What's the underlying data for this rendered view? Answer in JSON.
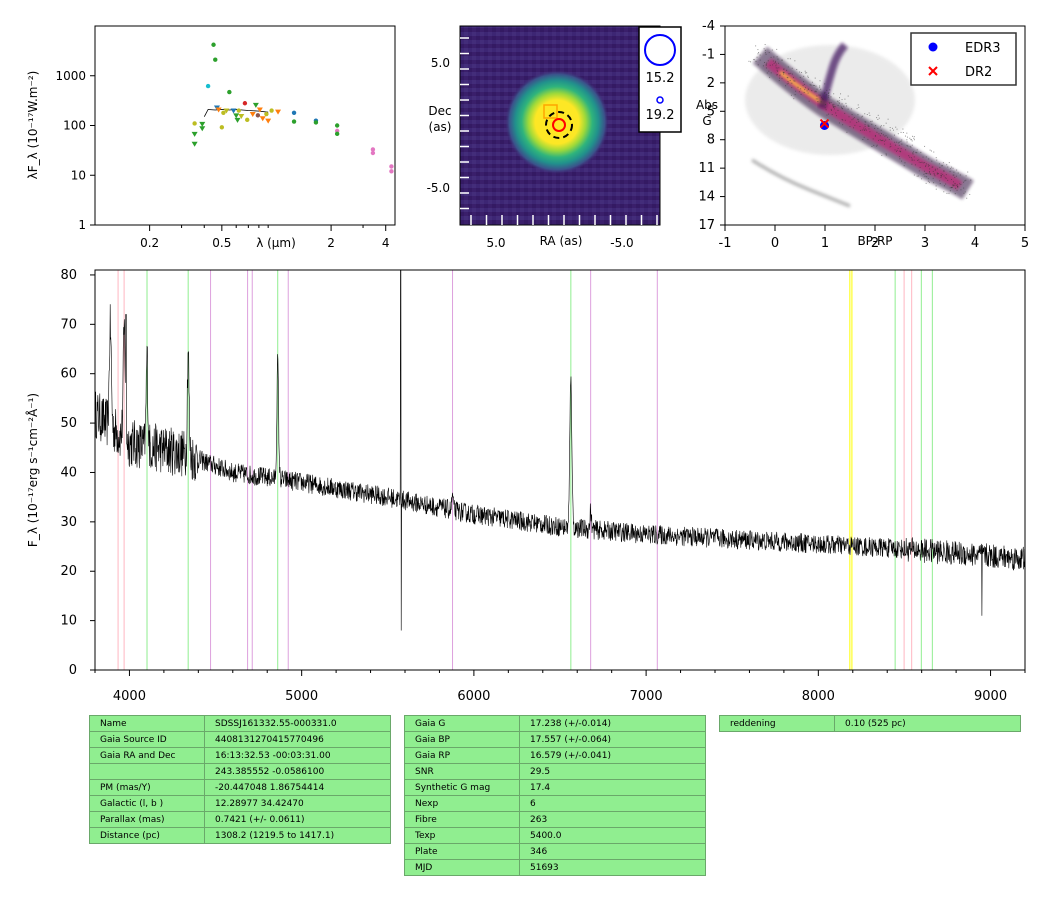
{
  "sed": {
    "ylabel": "λF_λ (10⁻¹⁷W.m⁻²)",
    "xlabel": "λ (μm)",
    "ytick_labels": [
      "1",
      "10",
      "100",
      "1000"
    ],
    "ytick_values": [
      1,
      10,
      100,
      1000
    ],
    "xtick_labels": [
      "0.2",
      "0.5",
      "2",
      "4"
    ],
    "xtick_values": [
      0.2,
      0.5,
      2,
      4
    ],
    "xlim": [
      0.1,
      4.5
    ],
    "ylim": [
      1,
      10000
    ],
    "points": [
      {
        "x": 0.354,
        "y": 110,
        "c": "#bcbd22",
        "m": "o"
      },
      {
        "x": 0.354,
        "y": 68,
        "c": "#2ca02c",
        "m": "v"
      },
      {
        "x": 0.354,
        "y": 43,
        "c": "#2ca02c",
        "m": "v"
      },
      {
        "x": 0.39,
        "y": 108,
        "c": "#2ca02c",
        "m": "v"
      },
      {
        "x": 0.39,
        "y": 88,
        "c": "#2ca02c",
        "m": "v"
      },
      {
        "x": 0.42,
        "y": 620,
        "c": "#17becf",
        "m": "o"
      },
      {
        "x": 0.45,
        "y": 4200,
        "c": "#2ca02c",
        "m": "o"
      },
      {
        "x": 0.46,
        "y": 2100,
        "c": "#2ca02c",
        "m": "o"
      },
      {
        "x": 0.47,
        "y": 230,
        "c": "#1f77b4",
        "m": "v"
      },
      {
        "x": 0.48,
        "y": 210,
        "c": "#ff7f0e",
        "m": "v"
      },
      {
        "x": 0.5,
        "y": 92,
        "c": "#bcbd22",
        "m": "o"
      },
      {
        "x": 0.51,
        "y": 180,
        "c": "#bcbd22",
        "m": "o"
      },
      {
        "x": 0.53,
        "y": 200,
        "c": "#bcbd22",
        "m": "v"
      },
      {
        "x": 0.55,
        "y": 470,
        "c": "#2ca02c",
        "m": "o"
      },
      {
        "x": 0.58,
        "y": 200,
        "c": "#1f77b4",
        "m": "v"
      },
      {
        "x": 0.6,
        "y": 160,
        "c": "#2ca02c",
        "m": "v"
      },
      {
        "x": 0.61,
        "y": 130,
        "c": "#2ca02c",
        "m": "v"
      },
      {
        "x": 0.62,
        "y": 200,
        "c": "#bcbd22",
        "m": "o"
      },
      {
        "x": 0.64,
        "y": 155,
        "c": "#bcbd22",
        "m": "v"
      },
      {
        "x": 0.67,
        "y": 280,
        "c": "#d62728",
        "m": "o"
      },
      {
        "x": 0.69,
        "y": 130,
        "c": "#bcbd22",
        "m": "o"
      },
      {
        "x": 0.74,
        "y": 170,
        "c": "#ff7f0e",
        "m": "v"
      },
      {
        "x": 0.77,
        "y": 260,
        "c": "#2ca02c",
        "m": "v"
      },
      {
        "x": 0.79,
        "y": 160,
        "c": "#8c564b",
        "m": "o"
      },
      {
        "x": 0.81,
        "y": 210,
        "c": "#ff7f0e",
        "m": "v"
      },
      {
        "x": 0.84,
        "y": 140,
        "c": "#ff7f0e",
        "m": "v"
      },
      {
        "x": 0.88,
        "y": 170,
        "c": "#bcbd22",
        "m": "o"
      },
      {
        "x": 0.9,
        "y": 125,
        "c": "#ff7f0e",
        "m": "v"
      },
      {
        "x": 0.94,
        "y": 200,
        "c": "#bcbd22",
        "m": "o"
      },
      {
        "x": 1.02,
        "y": 190,
        "c": "#ff7f0e",
        "m": "v"
      },
      {
        "x": 1.25,
        "y": 180,
        "c": "#1f77b4",
        "m": "o"
      },
      {
        "x": 1.25,
        "y": 120,
        "c": "#2ca02c",
        "m": "o"
      },
      {
        "x": 1.65,
        "y": 125,
        "c": "#1f77b4",
        "m": "o"
      },
      {
        "x": 1.65,
        "y": 115,
        "c": "#2ca02c",
        "m": "o"
      },
      {
        "x": 2.16,
        "y": 100,
        "c": "#2ca02c",
        "m": "o"
      },
      {
        "x": 2.16,
        "y": 78,
        "c": "#e377c2",
        "m": "o"
      },
      {
        "x": 2.16,
        "y": 68,
        "c": "#2ca02c",
        "m": "o"
      },
      {
        "x": 3.4,
        "y": 33,
        "c": "#e377c2",
        "m": "o"
      },
      {
        "x": 3.4,
        "y": 28,
        "c": "#e377c2",
        "m": "o"
      },
      {
        "x": 4.3,
        "y": 15,
        "c": "#e377c2",
        "m": "o"
      },
      {
        "x": 4.3,
        "y": 12,
        "c": "#e377c2",
        "m": "o"
      }
    ]
  },
  "image": {
    "ylabel_line1": "Dec",
    "ylabel_line2": "(as)",
    "xlabel": "RA (as)",
    "ytick_labels": [
      "5.0",
      "-5.0"
    ],
    "xtick_labels": [
      "5.0",
      "-5.0"
    ],
    "legend_large": "15.2",
    "legend_small": "19.2"
  },
  "cmd": {
    "ylabel_line1": "Abs",
    "ylabel_line2": "G",
    "xlabel": "BP-RP",
    "ytick_labels": [
      "-4",
      "-1",
      "2",
      "5",
      "8",
      "11",
      "14",
      "17"
    ],
    "ytick_values": [
      -4,
      -1,
      2,
      5,
      8,
      11,
      14,
      17
    ],
    "xtick_labels": [
      "-1",
      "0",
      "1",
      "2",
      "3",
      "4",
      "5"
    ],
    "xtick_values": [
      -1,
      0,
      1,
      2,
      3,
      4,
      5
    ],
    "xlim": [
      -1,
      5
    ],
    "ylim": [
      17,
      -4
    ],
    "legend_edr3": "EDR3",
    "legend_dr2": "DR2",
    "star_edr3": {
      "x": 0.99,
      "y": 6.5
    },
    "star_dr2": {
      "x": 0.99,
      "y": 6.3
    }
  },
  "spectrum": {
    "ylabel": "F_λ (10⁻¹⁷erg s⁻¹cm⁻²Å⁻¹)",
    "xtick_labels": [
      "4000",
      "5000",
      "6000",
      "7000",
      "8000",
      "9000"
    ],
    "xtick_values": [
      4000,
      5000,
      6000,
      7000,
      8000,
      9000
    ],
    "ytick_labels": [
      "0",
      "10",
      "20",
      "30",
      "40",
      "50",
      "60",
      "70",
      "80"
    ],
    "ytick_values": [
      0,
      10,
      20,
      30,
      40,
      50,
      60,
      70,
      80
    ],
    "xlim": [
      3800,
      9200
    ],
    "ylim": [
      0,
      81
    ],
    "lines": [
      {
        "x": 3934,
        "c": "#ffb6c1"
      },
      {
        "x": 3969,
        "c": "#ffb6c1"
      },
      {
        "x": 4102,
        "c": "#90ee90"
      },
      {
        "x": 4341,
        "c": "#90ee90"
      },
      {
        "x": 4471,
        "c": "#dda0dd"
      },
      {
        "x": 4686,
        "c": "#dda0dd"
      },
      {
        "x": 4713,
        "c": "#dda0dd"
      },
      {
        "x": 4861,
        "c": "#90ee90"
      },
      {
        "x": 4922,
        "c": "#dda0dd"
      },
      {
        "x": 5876,
        "c": "#dda0dd"
      },
      {
        "x": 6563,
        "c": "#90ee90"
      },
      {
        "x": 6678,
        "c": "#dda0dd"
      },
      {
        "x": 7065,
        "c": "#dda0dd"
      },
      {
        "x": 8183,
        "c": "#ffff00"
      },
      {
        "x": 8195,
        "c": "#ffff00"
      },
      {
        "x": 8446,
        "c": "#90ee90"
      },
      {
        "x": 8498,
        "c": "#ffb6c1"
      },
      {
        "x": 8542,
        "c": "#ffb6c1"
      },
      {
        "x": 8598,
        "c": "#90ee90"
      },
      {
        "x": 8662,
        "c": "#90ee90"
      }
    ],
    "continuum": [
      [
        3800,
        52
      ],
      [
        4000,
        46
      ],
      [
        4300,
        44
      ],
      [
        4600,
        40
      ],
      [
        5000,
        38
      ],
      [
        5500,
        35
      ],
      [
        6000,
        31.5
      ],
      [
        6500,
        29
      ],
      [
        7000,
        27.5
      ],
      [
        7500,
        26.5
      ],
      [
        8000,
        25.5
      ],
      [
        8500,
        24.5
      ],
      [
        9200,
        22.5
      ]
    ],
    "emission": [
      [
        3889,
        20,
        6
      ],
      [
        3970,
        22,
        6
      ],
      [
        4102,
        18,
        5
      ],
      [
        4341,
        22,
        5
      ],
      [
        4861,
        24,
        5
      ],
      [
        5876,
        3,
        4
      ],
      [
        6563,
        30,
        6
      ],
      [
        6678,
        4,
        4
      ]
    ]
  },
  "table1": {
    "rows": [
      [
        "Name",
        "SDSSJ161332.55-000331.0"
      ],
      [
        "Gaia Source ID",
        "4408131270415770496"
      ],
      [
        "Gaia RA and Dec",
        "16:13:32.53    -00:03:31.00"
      ],
      [
        "",
        "243.385552    -0.0586100"
      ],
      [
        "PM (mas/Y)",
        "-20.447048    1.86754414"
      ],
      [
        "Galactic (l, b )",
        "12.28977    34.42470"
      ],
      [
        "Parallax (mas)",
        "0.7421 (+/- 0.0611)"
      ],
      [
        "Distance (pc)",
        "1308.2 (1219.5 to 1417.1)"
      ]
    ]
  },
  "table2": {
    "rows": [
      [
        "Gaia G",
        "17.238 (+/-0.014)"
      ],
      [
        "Gaia BP",
        "17.557 (+/-0.064)"
      ],
      [
        "Gaia RP",
        "16.579 (+/-0.041)"
      ],
      [
        "SNR",
        "29.5"
      ],
      [
        "Synthetic G mag",
        "17.4"
      ],
      [
        "Nexp",
        "6"
      ],
      [
        "Fibre",
        "263"
      ],
      [
        "Texp",
        "5400.0"
      ],
      [
        "Plate",
        "346"
      ],
      [
        "MJD",
        "51693"
      ]
    ]
  },
  "table3": {
    "rows": [
      [
        "reddening",
        "0.10 (525 pc)"
      ]
    ]
  },
  "chart_data": [
    {
      "type": "scatter",
      "title": "",
      "xlabel": "λ (μm)",
      "ylabel": "λF_λ (10⁻¹⁷W.m⁻²)",
      "x_scale": "log",
      "y_scale": "log",
      "xlim": [
        0.1,
        4.5
      ],
      "ylim": [
        1,
        10000
      ],
      "series": [
        {
          "values": [
            [
              0.354,
              110
            ],
            [
              0.354,
              68
            ],
            [
              0.45,
              4200
            ],
            [
              0.46,
              2100
            ],
            [
              0.55,
              470
            ],
            [
              0.62,
              200
            ],
            [
              0.67,
              280
            ],
            [
              0.94,
              200
            ],
            [
              1.25,
              180
            ],
            [
              1.65,
              125
            ],
            [
              2.16,
              78
            ],
            [
              3.4,
              33
            ],
            [
              4.3,
              15
            ]
          ]
        }
      ]
    },
    {
      "type": "heatmap",
      "xlabel": "RA (as)",
      "ylabel": "Dec (as)",
      "ticks": [
        5.0,
        -5.0
      ],
      "legend": [
        "15.2",
        "19.2"
      ]
    },
    {
      "type": "scatter",
      "xlabel": "BP-RP",
      "ylabel": "Abs G",
      "xlim": [
        -1,
        5
      ],
      "ylim": [
        17,
        -4
      ],
      "series": [
        {
          "name": "EDR3",
          "values": [
            [
              0.99,
              6.5
            ]
          ]
        },
        {
          "name": "DR2",
          "values": [
            [
              0.99,
              6.3
            ]
          ]
        }
      ]
    },
    {
      "type": "line",
      "ylabel": "F_λ (10⁻¹⁷erg s⁻¹cm⁻²Å⁻¹)",
      "xlim": [
        3800,
        9200
      ],
      "ylim": [
        0,
        81
      ],
      "x": [
        3800,
        4000,
        4341,
        4861,
        5000,
        5500,
        6000,
        6563,
        7000,
        8000,
        9000,
        9200
      ],
      "values": [
        52,
        46,
        65,
        66,
        38,
        35,
        31.5,
        60,
        27.5,
        25.5,
        23,
        22.5
      ]
    }
  ]
}
